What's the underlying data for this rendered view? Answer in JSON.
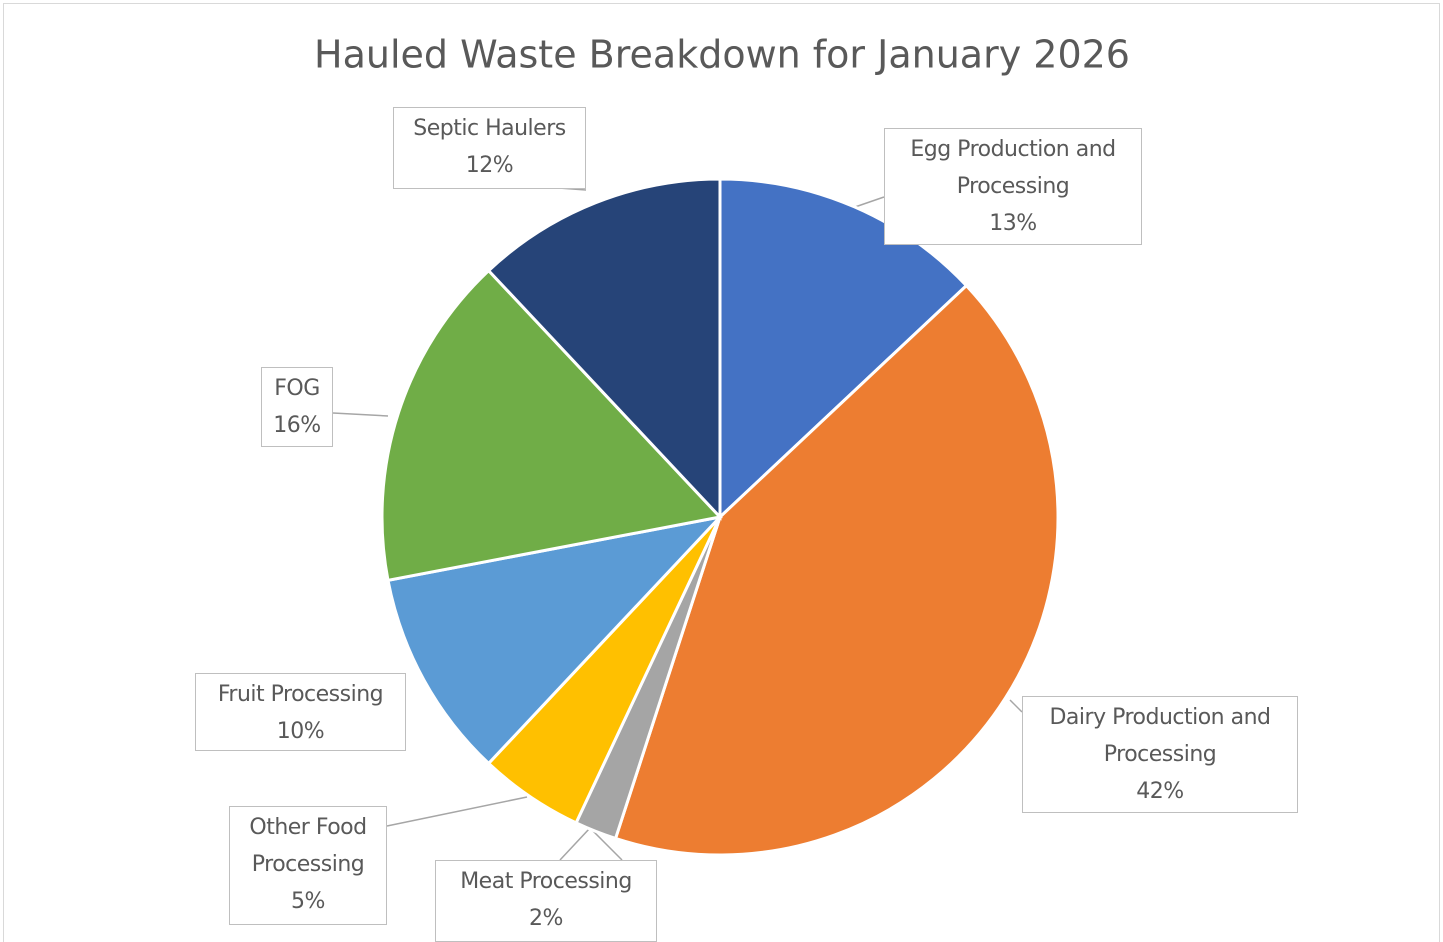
{
  "chart_data": {
    "type": "pie",
    "title": "Hauled Waste Breakdown for January 2026",
    "categories": [
      "Egg Production and Processing",
      "Dairy Production and Processing",
      "Meat Processing",
      "Other Food Processing",
      "Fruit Processing",
      "FOG",
      "Septic Haulers"
    ],
    "values": [
      13,
      42,
      2,
      5,
      10,
      16,
      12
    ],
    "value_labels": [
      "13%",
      "42%",
      "2%",
      "5%",
      "10%",
      "16%",
      "12%"
    ],
    "colors": [
      "#4472c4",
      "#ed7d31",
      "#a5a5a5",
      "#ffc000",
      "#5b9bd5",
      "#70ad47",
      "#264478"
    ]
  }
}
